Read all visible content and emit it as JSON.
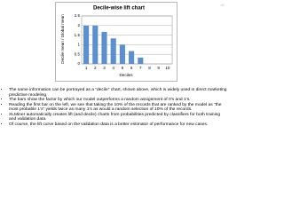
{
  "page_number": "32",
  "chart_data": {
    "type": "bar",
    "title": "Decile-wise lift chart",
    "x_label": "Deciles",
    "y_label": "Decile mean / Global mean",
    "categories": [
      "1",
      "2",
      "3",
      "4",
      "5",
      "6",
      "7",
      "8",
      "9",
      "10"
    ],
    "values": [
      2,
      2,
      1.67,
      1.33,
      1,
      0.67,
      0.33,
      0,
      0,
      0
    ],
    "color": "#5b8fd0",
    "ylim": [
      0,
      2.5
    ],
    "yticks": [
      0,
      0.5,
      1,
      1.5,
      2,
      2.5
    ],
    "grid": true
  },
  "bullets": [
    "The same information can be portrayed as a “decile” chart, shown above, which is widely used in direct marketing predictive modeling.",
    "The bars show the factor by which our model outperforms a random assignment of 0’s and 1’s.",
    "Reading the first bar on the left, we see that taking the 10% of the records that are ranked by the model as “the most probable 1’s” yields twice as many 1’s as would a random selection of 10% of the records.",
    "XLMiner automatically creates lift (and decile) charts from probabilities predicted by classifiers for both training and validation data.",
    "Of course, the lift curve based on the validation data is a better estimator of performance for new cases."
  ]
}
